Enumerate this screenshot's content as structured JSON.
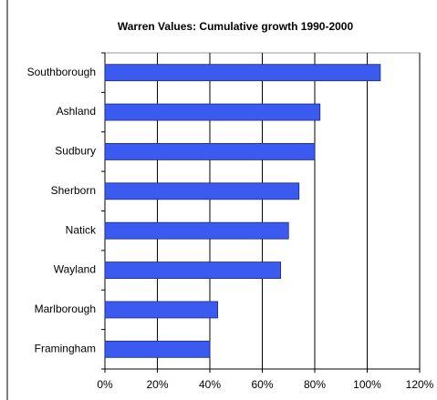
{
  "chart_data": {
    "type": "bar",
    "orientation": "horizontal",
    "title": "Warren Values: Cumulative growth 1990-2000",
    "categories": [
      "Southborough",
      "Ashland",
      "Sudbury",
      "Sherborn",
      "Natick",
      "Wayland",
      "Marlborough",
      "Framingham"
    ],
    "values": [
      105,
      82,
      80,
      74,
      70,
      67,
      43,
      40
    ],
    "color": "#3b5bf0",
    "xlim": [
      0,
      120
    ],
    "xticks": [
      {
        "value": 0,
        "label": "0%"
      },
      {
        "value": 20,
        "label": "20%"
      },
      {
        "value": 40,
        "label": "40%"
      },
      {
        "value": 60,
        "label": "60%"
      },
      {
        "value": 80,
        "label": "80%"
      },
      {
        "value": 100,
        "label": "100%"
      },
      {
        "value": 120,
        "label": "120%"
      }
    ],
    "grid": true
  }
}
